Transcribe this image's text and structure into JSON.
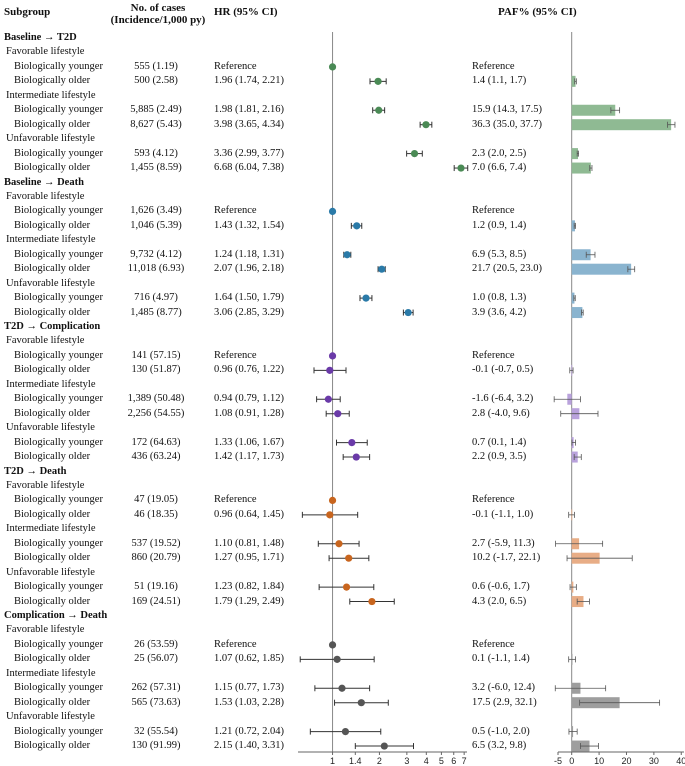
{
  "headers": {
    "subgroup": "Subgroup",
    "cases_l1": "No. of cases",
    "cases_l2": "(Incidence/1,000 py)",
    "hr": "HR (95% CI)",
    "paf": "PAF% (95% CI)"
  },
  "chart_data": {
    "type": "forest",
    "hr_axis": {
      "scale": "log",
      "ticks": [
        1,
        1.4,
        2,
        3,
        4,
        5,
        6,
        7
      ],
      "reference_line": 1
    },
    "paf_axis": {
      "scale": "linear",
      "ticks": [
        -5,
        0,
        10,
        20,
        30,
        40
      ],
      "reference_line": 0
    },
    "sections": [
      {
        "title": "Baseline → T2D",
        "color": "#4a8a55",
        "bar_color": "#8fba93",
        "groups": [
          {
            "label": "Favorable lifestyle",
            "rows": [
              {
                "label": "Biologically younger",
                "cases": "555 (1.19)",
                "hr_text": "Reference",
                "hr": 1,
                "lo": null,
                "hi": null,
                "paf_text": "Reference",
                "paf": null,
                "paf_lo": null,
                "paf_hi": null
              },
              {
                "label": "Biologically older",
                "cases": "500 (2.58)",
                "hr_text": "1.96 (1.74, 2.21)",
                "hr": 1.96,
                "lo": 1.74,
                "hi": 2.21,
                "paf_text": "1.4 (1.1, 1.7)",
                "paf": 1.4,
                "paf_lo": 1.1,
                "paf_hi": 1.7
              }
            ]
          },
          {
            "label": "Intermediate lifestyle",
            "rows": [
              {
                "label": "Biologically younger",
                "cases": "5,885 (2.49)",
                "hr_text": "1.98 (1.81, 2.16)",
                "hr": 1.98,
                "lo": 1.81,
                "hi": 2.16,
                "paf_text": "15.9 (14.3, 17.5)",
                "paf": 15.9,
                "paf_lo": 14.3,
                "paf_hi": 17.5
              },
              {
                "label": "Biologically older",
                "cases": "8,627 (5.43)",
                "hr_text": "3.98 (3.65, 4.34)",
                "hr": 3.98,
                "lo": 3.65,
                "hi": 4.34,
                "paf_text": "36.3 (35.0, 37.7)",
                "paf": 36.3,
                "paf_lo": 35.0,
                "paf_hi": 37.7
              }
            ]
          },
          {
            "label": "Unfavorable lifestyle",
            "rows": [
              {
                "label": "Biologically younger",
                "cases": "593 (4.12)",
                "hr_text": "3.36 (2.99, 3.77)",
                "hr": 3.36,
                "lo": 2.99,
                "hi": 3.77,
                "paf_text": "2.3 (2.0, 2.5)",
                "paf": 2.3,
                "paf_lo": 2.0,
                "paf_hi": 2.5
              },
              {
                "label": "Biologically older",
                "cases": "1,455 (8.59)",
                "hr_text": "6.68 (6.04, 7.38)",
                "hr": 6.68,
                "lo": 6.04,
                "hi": 7.38,
                "paf_text": "7.0 (6.6, 7.4)",
                "paf": 7.0,
                "paf_lo": 6.6,
                "paf_hi": 7.4
              }
            ]
          }
        ]
      },
      {
        "title": "Baseline → Death",
        "color": "#2a7aa8",
        "bar_color": "#8ab4cf",
        "groups": [
          {
            "label": "Favorable lifestyle",
            "rows": [
              {
                "label": "Biologically younger",
                "cases": "1,626 (3.49)",
                "hr_text": "Reference",
                "hr": 1,
                "lo": null,
                "hi": null,
                "paf_text": "Reference",
                "paf": null,
                "paf_lo": null,
                "paf_hi": null
              },
              {
                "label": "Biologically older",
                "cases": "1,046 (5.39)",
                "hr_text": "1.43 (1.32, 1.54)",
                "hr": 1.43,
                "lo": 1.32,
                "hi": 1.54,
                "paf_text": "1.2 (0.9, 1.4)",
                "paf": 1.2,
                "paf_lo": 0.9,
                "paf_hi": 1.4
              }
            ]
          },
          {
            "label": "Intermediate lifestyle",
            "rows": [
              {
                "label": "Biologically younger",
                "cases": "9,732 (4.12)",
                "hr_text": "1.24 (1.18, 1.31)",
                "hr": 1.24,
                "lo": 1.18,
                "hi": 1.31,
                "paf_text": "6.9 (5.3, 8.5)",
                "paf": 6.9,
                "paf_lo": 5.3,
                "paf_hi": 8.5
              },
              {
                "label": "Biologically older",
                "cases": "11,018 (6.93)",
                "hr_text": "2.07 (1.96, 2.18)",
                "hr": 2.07,
                "lo": 1.96,
                "hi": 2.18,
                "paf_text": "21.7 (20.5, 23.0)",
                "paf": 21.7,
                "paf_lo": 20.5,
                "paf_hi": 23.0
              }
            ]
          },
          {
            "label": "Unfavorable lifestyle",
            "rows": [
              {
                "label": "Biologically younger",
                "cases": "716 (4.97)",
                "hr_text": "1.64 (1.50, 1.79)",
                "hr": 1.64,
                "lo": 1.5,
                "hi": 1.79,
                "paf_text": "1.0 (0.8, 1.3)",
                "paf": 1.0,
                "paf_lo": 0.8,
                "paf_hi": 1.3
              },
              {
                "label": "Biologically older",
                "cases": "1,485 (8.77)",
                "hr_text": "3.06 (2.85, 3.29)",
                "hr": 3.06,
                "lo": 2.85,
                "hi": 3.29,
                "paf_text": "3.9 (3.6, 4.2)",
                "paf": 3.9,
                "paf_lo": 3.6,
                "paf_hi": 4.2
              }
            ]
          }
        ]
      },
      {
        "title": "T2D → Complication",
        "color": "#6a3aa8",
        "bar_color": "#b9a2dc",
        "groups": [
          {
            "label": "Favorable lifestyle",
            "rows": [
              {
                "label": "Biologically younger",
                "cases": "141 (57.15)",
                "hr_text": "Reference",
                "hr": 1,
                "lo": null,
                "hi": null,
                "paf_text": "Reference",
                "paf": null,
                "paf_lo": null,
                "paf_hi": null
              },
              {
                "label": "Biologically older",
                "cases": "130 (51.87)",
                "hr_text": "0.96 (0.76, 1.22)",
                "hr": 0.96,
                "lo": 0.76,
                "hi": 1.22,
                "paf_text": "-0.1 (-0.7, 0.5)",
                "paf": -0.1,
                "paf_lo": -0.7,
                "paf_hi": 0.5
              }
            ]
          },
          {
            "label": "Intermediate lifestyle",
            "rows": [
              {
                "label": "Biologically younger",
                "cases": "1,389 (50.48)",
                "hr_text": "0.94 (0.79, 1.12)",
                "hr": 0.94,
                "lo": 0.79,
                "hi": 1.12,
                "paf_text": "-1.6 (-6.4, 3.2)",
                "paf": -1.6,
                "paf_lo": -6.4,
                "paf_hi": 3.2
              },
              {
                "label": "Biologically older",
                "cases": "2,256 (54.55)",
                "hr_text": "1.08 (0.91, 1.28)",
                "hr": 1.08,
                "lo": 0.91,
                "hi": 1.28,
                "paf_text": "2.8 (-4.0, 9.6)",
                "paf": 2.8,
                "paf_lo": -4.0,
                "paf_hi": 9.6
              }
            ]
          },
          {
            "label": "Unfavorable lifestyle",
            "rows": [
              {
                "label": "Biologically younger",
                "cases": "172 (64.63)",
                "hr_text": "1.33 (1.06, 1.67)",
                "hr": 1.33,
                "lo": 1.06,
                "hi": 1.67,
                "paf_text": "0.7 (0.1, 1.4)",
                "paf": 0.7,
                "paf_lo": 0.1,
                "paf_hi": 1.4
              },
              {
                "label": "Biologically older",
                "cases": "436 (63.24)",
                "hr_text": "1.42 (1.17, 1.73)",
                "hr": 1.42,
                "lo": 1.17,
                "hi": 1.73,
                "paf_text": "2.2 (0.9, 3.5)",
                "paf": 2.2,
                "paf_lo": 0.9,
                "paf_hi": 3.5
              }
            ]
          }
        ]
      },
      {
        "title": "T2D → Death",
        "color": "#c8651e",
        "bar_color": "#e8ad86",
        "groups": [
          {
            "label": "Favorable lifestyle",
            "rows": [
              {
                "label": "Biologically younger",
                "cases": "47 (19.05)",
                "hr_text": "Reference",
                "hr": 1,
                "lo": null,
                "hi": null,
                "paf_text": "Reference",
                "paf": null,
                "paf_lo": null,
                "paf_hi": null
              },
              {
                "label": "Biologically older",
                "cases": "46 (18.35)",
                "hr_text": "0.96 (0.64, 1.45)",
                "hr": 0.96,
                "lo": 0.64,
                "hi": 1.45,
                "paf_text": "-0.1 (-1.1, 1.0)",
                "paf": -0.1,
                "paf_lo": -1.1,
                "paf_hi": 1.0
              }
            ]
          },
          {
            "label": "Intermediate lifestyle",
            "rows": [
              {
                "label": "Biologically younger",
                "cases": "537 (19.52)",
                "hr_text": "1.10 (0.81, 1.48)",
                "hr": 1.1,
                "lo": 0.81,
                "hi": 1.48,
                "paf_text": "2.7 (-5.9, 11.3)",
                "paf": 2.7,
                "paf_lo": -5.9,
                "paf_hi": 11.3
              },
              {
                "label": "Biologically older",
                "cases": "860 (20.79)",
                "hr_text": "1.27 (0.95, 1.71)",
                "hr": 1.27,
                "lo": 0.95,
                "hi": 1.71,
                "paf_text": "10.2 (-1.7, 22.1)",
                "paf": 10.2,
                "paf_lo": -1.7,
                "paf_hi": 22.1
              }
            ]
          },
          {
            "label": "Unfavorable lifestyle",
            "rows": [
              {
                "label": "Biologically younger",
                "cases": "51 (19.16)",
                "hr_text": "1.23 (0.82, 1.84)",
                "hr": 1.23,
                "lo": 0.82,
                "hi": 1.84,
                "paf_text": "0.6 (-0.6, 1.7)",
                "paf": 0.6,
                "paf_lo": -0.6,
                "paf_hi": 1.7
              },
              {
                "label": "Biologically older",
                "cases": "169 (24.51)",
                "hr_text": "1.79 (1.29, 2.49)",
                "hr": 1.79,
                "lo": 1.29,
                "hi": 2.49,
                "paf_text": "4.3 (2.0, 6.5)",
                "paf": 4.3,
                "paf_lo": 2.0,
                "paf_hi": 6.5
              }
            ]
          }
        ]
      },
      {
        "title": "Complication → Death",
        "color": "#555555",
        "bar_color": "#9e9e9e",
        "groups": [
          {
            "label": "Favorable lifestyle",
            "rows": [
              {
                "label": "Biologically younger",
                "cases": "26 (53.59)",
                "hr_text": "Reference",
                "hr": 1,
                "lo": null,
                "hi": null,
                "paf_text": "Reference",
                "paf": null,
                "paf_lo": null,
                "paf_hi": null
              },
              {
                "label": "Biologically older",
                "cases": "25 (56.07)",
                "hr_text": "1.07 (0.62, 1.85)",
                "hr": 1.07,
                "lo": 0.62,
                "hi": 1.85,
                "paf_text": "0.1 (-1.1, 1.4)",
                "paf": 0.1,
                "paf_lo": -1.1,
                "paf_hi": 1.4
              }
            ]
          },
          {
            "label": "Intermediate lifestyle",
            "rows": [
              {
                "label": "Biologically younger",
                "cases": "262 (57.31)",
                "hr_text": "1.15 (0.77, 1.73)",
                "hr": 1.15,
                "lo": 0.77,
                "hi": 1.73,
                "paf_text": "3.2 (-6.0, 12.4)",
                "paf": 3.2,
                "paf_lo": -6.0,
                "paf_hi": 12.4
              },
              {
                "label": "Biologically older",
                "cases": "565 (73.63)",
                "hr_text": "1.53 (1.03, 2.28)",
                "hr": 1.53,
                "lo": 1.03,
                "hi": 2.28,
                "paf_text": "17.5 (2.9, 32.1)",
                "paf": 17.5,
                "paf_lo": 2.9,
                "paf_hi": 32.1
              }
            ]
          },
          {
            "label": "Unfavorable lifestyle",
            "rows": [
              {
                "label": "Biologically younger",
                "cases": "32 (55.54)",
                "hr_text": "1.21 (0.72, 2.04)",
                "hr": 1.21,
                "lo": 0.72,
                "hi": 2.04,
                "paf_text": "0.5 (-1.0, 2.0)",
                "paf": 0.5,
                "paf_lo": -1.0,
                "paf_hi": 2.0
              },
              {
                "label": "Biologically older",
                "cases": "130 (91.99)",
                "hr_text": "2.15 (1.40, 3.31)",
                "hr": 2.15,
                "lo": 1.4,
                "hi": 3.31,
                "paf_text": "6.5 (3.2, 9.8)",
                "paf": 6.5,
                "paf_lo": 3.2,
                "paf_hi": 9.8
              }
            ]
          }
        ]
      }
    ]
  }
}
